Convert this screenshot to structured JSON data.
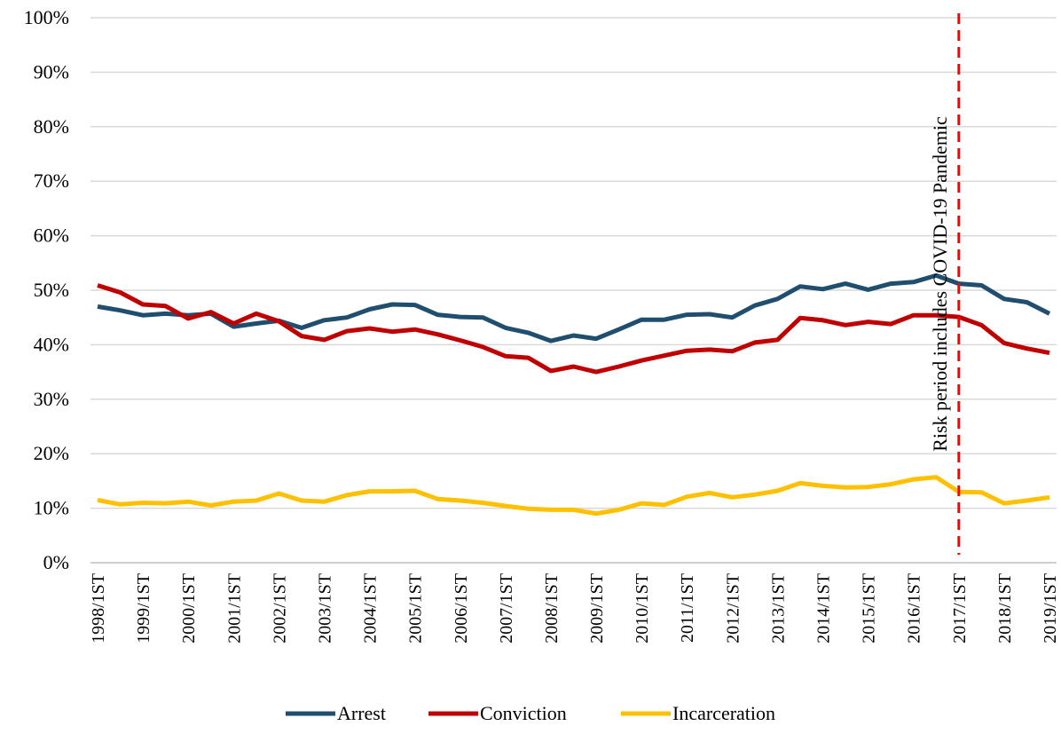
{
  "chart_data": {
    "type": "line",
    "categories": [
      "1998/1ST",
      null,
      "1999/1ST",
      null,
      "2000/1ST",
      null,
      "2001/1ST",
      null,
      "2002/1ST",
      null,
      "2003/1ST",
      null,
      "2004/1ST",
      null,
      "2005/1ST",
      null,
      "2006/1ST",
      null,
      "2007/1ST",
      null,
      "2008/1ST",
      null,
      "2009/1ST",
      null,
      "2010/1ST",
      null,
      "2011/1ST",
      null,
      "2012/1ST",
      null,
      "2013/1ST",
      null,
      "2014/1ST",
      null,
      "2015/1ST",
      null,
      "2016/1ST",
      null,
      "2017/1ST",
      null,
      "2018/1ST",
      null,
      "2019/1ST"
    ],
    "series": [
      {
        "name": "Arrest",
        "color": "#1f4e6e",
        "values": [
          47,
          46.3,
          45.4,
          45.7,
          45.4,
          45.7,
          43.3,
          43.9,
          44.4,
          43.1,
          44.5,
          45,
          46.5,
          47.4,
          47.3,
          45.5,
          45.1,
          45,
          43.1,
          42.2,
          40.7,
          41.7,
          41.1,
          42.8,
          44.6,
          44.6,
          45.5,
          45.6,
          45,
          47.2,
          48.4,
          50.7,
          50.2,
          51.2,
          50.1,
          51.2,
          51.5,
          52.7,
          51.2,
          50.9,
          48.4,
          47.8,
          45.7
        ]
      },
      {
        "name": "Conviction",
        "color": "#c00000",
        "values": [
          50.9,
          49.6,
          47.4,
          47.1,
          44.8,
          46,
          43.9,
          45.7,
          44.3,
          41.6,
          40.9,
          42.5,
          43,
          42.4,
          42.8,
          41.9,
          40.8,
          39.6,
          37.9,
          37.6,
          35.2,
          36,
          35,
          36,
          37.1,
          38,
          38.9,
          39.1,
          38.8,
          40.4,
          40.9,
          44.9,
          44.5,
          43.6,
          44.2,
          43.8,
          45.4,
          45.4,
          45.1,
          43.6,
          40.3,
          39.3,
          38.5
        ]
      },
      {
        "name": "Incarceration",
        "color": "#ffc000",
        "values": [
          11.5,
          10.7,
          11,
          10.9,
          11.2,
          10.5,
          11.2,
          11.4,
          12.7,
          11.4,
          11.2,
          12.4,
          13.1,
          13.1,
          13.2,
          11.7,
          11.4,
          11,
          10.4,
          9.9,
          9.7,
          9.7,
          9,
          9.7,
          10.9,
          10.6,
          12.1,
          12.8,
          12,
          12.5,
          13.2,
          14.6,
          14.1,
          13.8,
          13.9,
          14.4,
          15.3,
          15.7,
          13,
          12.9,
          10.9,
          11.4,
          12
        ]
      }
    ],
    "ylim": [
      0,
      100
    ],
    "yticks": [
      {
        "value": 0,
        "label": "0%"
      },
      {
        "value": 10,
        "label": "10%"
      },
      {
        "value": 20,
        "label": "20%"
      },
      {
        "value": 30,
        "label": "30%"
      },
      {
        "value": 40,
        "label": "40%"
      },
      {
        "value": 50,
        "label": "50%"
      },
      {
        "value": 60,
        "label": "60%"
      },
      {
        "value": 70,
        "label": "70%"
      },
      {
        "value": 80,
        "label": "80%"
      },
      {
        "value": 90,
        "label": "90%"
      },
      {
        "value": 100,
        "label": "100%"
      }
    ],
    "grid": true,
    "legend": "bottom",
    "annotation": {
      "text": "Risk period includes COVID-19 Pandemic",
      "at": "2017/1ST",
      "color": "#ff0000"
    }
  }
}
